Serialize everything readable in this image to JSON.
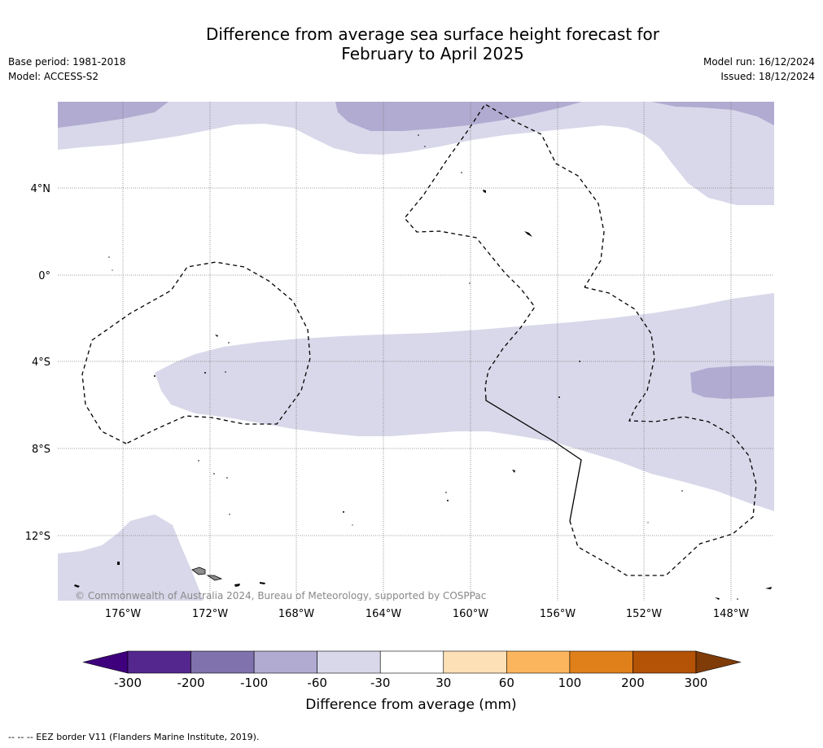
{
  "title_line1": "Difference from average sea surface height forecast for",
  "title_line2": "February to April 2025",
  "meta_left": {
    "base_period": "Base period: 1981-2018",
    "model": "Model: ACCESS-S2"
  },
  "meta_right": {
    "model_run": "Model run: 16/12/2024",
    "issued": "Issued: 18/12/2024"
  },
  "map": {
    "lon_ticks": [
      "176°W",
      "172°W",
      "168°W",
      "164°W",
      "160°W",
      "156°W",
      "152°W",
      "148°W"
    ],
    "lat_ticks": [
      "4°N",
      "0°",
      "4°S",
      "8°S",
      "12°S"
    ],
    "copyright": "© Commonwealth of Australia 2024, Bureau of Meteorology, supported by COSPPac",
    "colors": {
      "pale_purple": "#d8d8ea",
      "mid_purple": "#b1abd1"
    }
  },
  "colorbar": {
    "label": "Difference from average (mm)",
    "ticks": [
      "-300",
      "-200",
      "-100",
      "-60",
      "-30",
      "30",
      "60",
      "100",
      "200",
      "300"
    ],
    "colors": [
      "#3f007d",
      "#54278f",
      "#8072ad",
      "#b1abd1",
      "#d8d8ea",
      "#ffffff",
      "#fee0b6",
      "#fbb55d",
      "#e0801a",
      "#b45206",
      "#7f3b08"
    ]
  },
  "footer": "-- -- -- EEZ border V11 (Flanders Marine Institute, 2019)."
}
